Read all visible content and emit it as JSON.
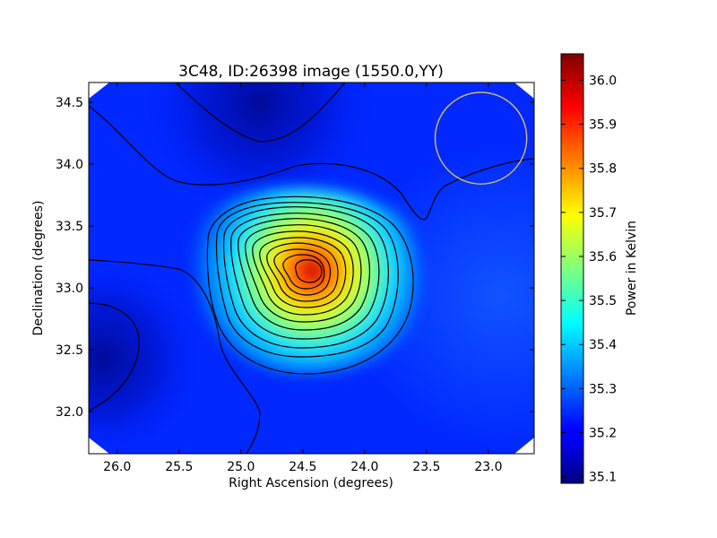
{
  "chart_data": {
    "type": "heatmap",
    "title": "3C48, ID:26398 image (1550.0,YY)",
    "xlabel": "Right Ascension (degrees)",
    "ylabel": "Declination (degrees)",
    "xlim": [
      26.23,
      22.63
    ],
    "ylim": [
      31.66,
      34.66
    ],
    "x_ticks": [
      26.0,
      25.5,
      25.0,
      24.5,
      24.0,
      23.5,
      23.0
    ],
    "x_tick_labels": [
      "26.0",
      "25.5",
      "25.0",
      "24.5",
      "24.0",
      "23.5",
      "23.0"
    ],
    "y_ticks": [
      32.0,
      32.5,
      33.0,
      33.5,
      34.0,
      34.5
    ],
    "y_tick_labels": [
      "32.0",
      "32.5",
      "33.0",
      "33.5",
      "34.0",
      "34.5"
    ],
    "colormap": "jet",
    "colorbar": {
      "label": "Power in Kelvin",
      "range": [
        35.085,
        36.06
      ],
      "ticks": [
        35.1,
        35.2,
        35.3,
        35.4,
        35.5,
        35.6,
        35.7,
        35.8,
        35.9,
        36.0
      ],
      "tick_labels": [
        "35.1",
        "35.2",
        "35.3",
        "35.4",
        "35.5",
        "35.6",
        "35.7",
        "35.8",
        "35.9",
        "36.0"
      ]
    },
    "peak": {
      "ra": 24.44,
      "dec": 33.13,
      "value": 36.06
    },
    "background_level": 35.2,
    "minima": [
      {
        "ra": 24.7,
        "dec": 34.55,
        "value": 35.09
      },
      {
        "ra": 26.1,
        "dec": 32.6,
        "value": 35.1
      }
    ],
    "beam_circle": {
      "ra": 23.06,
      "dec": 34.21,
      "radius_deg": 0.37,
      "color": "#c8b66a"
    },
    "contour_count": 13
  }
}
